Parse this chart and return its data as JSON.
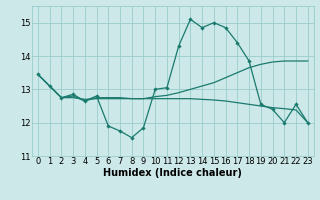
{
  "xlabel": "Humidex (Indice chaleur)",
  "background_color": "#cce8e8",
  "line_color": "#1a7a6e",
  "grid_color": "#99cccc",
  "xlim": [
    -0.5,
    23.5
  ],
  "ylim": [
    11,
    15.5
  ],
  "yticks": [
    11,
    12,
    13,
    14,
    15
  ],
  "xticks": [
    0,
    1,
    2,
    3,
    4,
    5,
    6,
    7,
    8,
    9,
    10,
    11,
    12,
    13,
    14,
    15,
    16,
    17,
    18,
    19,
    20,
    21,
    22,
    23
  ],
  "line1_x": [
    0,
    1,
    2,
    3,
    4,
    5,
    6,
    7,
    8,
    9,
    10,
    11,
    12,
    13,
    14,
    15,
    16,
    17,
    18,
    19,
    20,
    21,
    22,
    23
  ],
  "line1_y": [
    13.45,
    13.1,
    12.75,
    12.85,
    12.65,
    12.8,
    11.9,
    11.75,
    11.55,
    11.85,
    13.0,
    13.05,
    14.3,
    15.1,
    14.85,
    15.0,
    14.85,
    14.4,
    13.85,
    12.55,
    12.4,
    12.0,
    12.55,
    12.0
  ],
  "line2_x": [
    0,
    1,
    2,
    3,
    4,
    5,
    6,
    7,
    8,
    9,
    10,
    11,
    12,
    13,
    14,
    15,
    16,
    17,
    18,
    19,
    20,
    21,
    22,
    23
  ],
  "line2_y": [
    13.45,
    13.1,
    12.75,
    12.75,
    12.7,
    12.72,
    12.72,
    12.72,
    12.72,
    12.72,
    12.78,
    12.82,
    12.9,
    13.0,
    13.1,
    13.2,
    13.35,
    13.5,
    13.65,
    13.75,
    13.82,
    13.85,
    13.85,
    13.85
  ],
  "line3_x": [
    0,
    1,
    2,
    3,
    4,
    5,
    6,
    7,
    8,
    9,
    10,
    11,
    12,
    13,
    14,
    15,
    16,
    17,
    18,
    19,
    20,
    21,
    22,
    23
  ],
  "line3_y": [
    13.45,
    13.1,
    12.75,
    12.8,
    12.65,
    12.75,
    12.75,
    12.75,
    12.72,
    12.72,
    12.72,
    12.72,
    12.72,
    12.72,
    12.7,
    12.68,
    12.65,
    12.6,
    12.55,
    12.5,
    12.45,
    12.42,
    12.38,
    12.0
  ]
}
